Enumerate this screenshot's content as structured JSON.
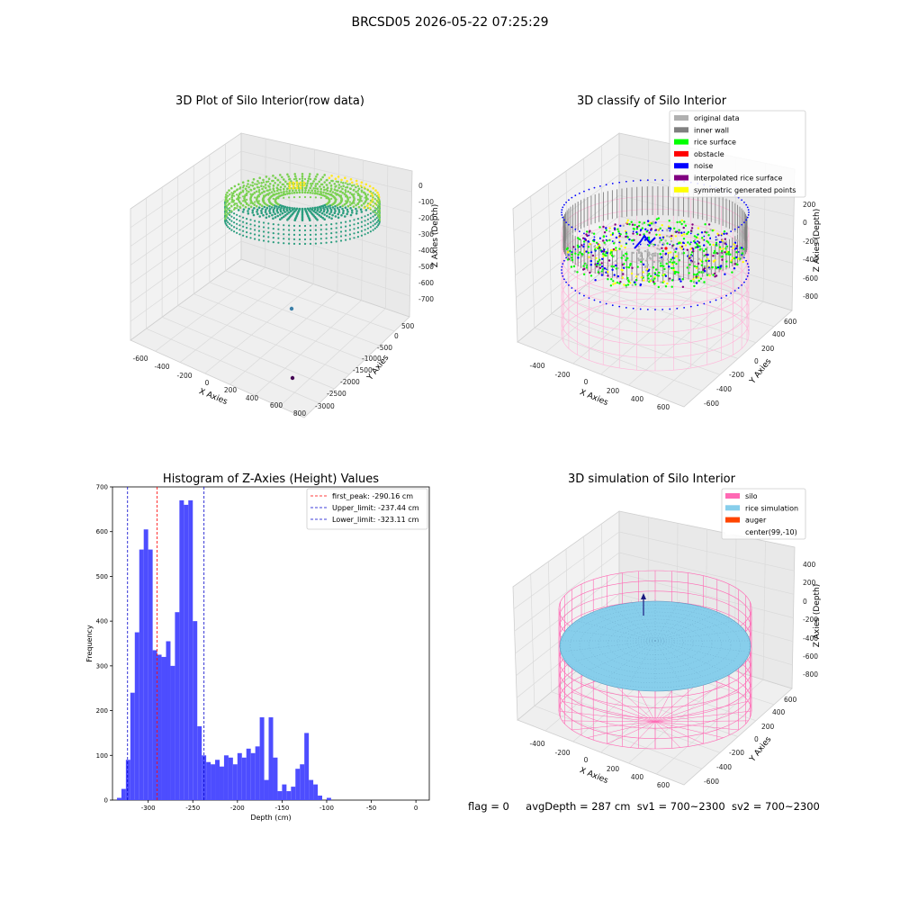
{
  "figure": {
    "title": "BRCSD05 2026-05-22 07:25:29",
    "footer": {
      "flag": "flag = 0",
      "avgDepth": "avgDepth = 287 cm",
      "sv1": "sv1 = 700~2300",
      "sv2": "sv2 = 700~2300"
    }
  },
  "chart_data": [
    {
      "type": "scatter",
      "projection": "3d",
      "title": "3D Plot of Silo Interior(row data)",
      "xlabel": "X Axies",
      "ylabel": "Y Axies",
      "zlabel": "Z Axies (Depth)",
      "x_ticks": [
        "-600",
        "-400",
        "-200",
        "0",
        "200",
        "400",
        "600",
        "800"
      ],
      "y_ticks": [
        "500",
        "0",
        "-500",
        "-1000",
        "-1500",
        "-2000",
        "-2500",
        "-3000"
      ],
      "z_ticks": [
        "0",
        "-100",
        "-200",
        "-300",
        "-400",
        "-500",
        "-600",
        "-700"
      ],
      "colormap": "viridis",
      "outliers": [
        {
          "x": 130,
          "y": -1100,
          "z": -620,
          "color": "#3b7fa8"
        },
        {
          "x": 600,
          "y": -2600,
          "z": -700,
          "color": "#440154"
        }
      ],
      "colors": {
        "main_low": "#2a9d7e",
        "main_mid": "#7ad151",
        "main_high": "#fde725"
      }
    },
    {
      "type": "scatter",
      "projection": "3d",
      "title": "3D classify of Silo Interior",
      "xlabel": "X Axies",
      "ylabel": "Y Axies",
      "zlabel": "Z Axies (Depth)",
      "x_ticks": [
        "-400",
        "-200",
        "0",
        "200",
        "400",
        "600"
      ],
      "y_ticks": [
        "600",
        "400",
        "200",
        "0",
        "-200",
        "-400",
        "-600"
      ],
      "z_ticks": [
        "200",
        "0",
        "-200",
        "-400",
        "-600",
        "-800"
      ],
      "legend": [
        {
          "label": "original data",
          "color": "#b0b0b0"
        },
        {
          "label": "inner wall",
          "color": "#808080"
        },
        {
          "label": "rice surface",
          "color": "#00ff00"
        },
        {
          "label": "obstacle",
          "color": "#ff0000"
        },
        {
          "label": "noise",
          "color": "#0000ff"
        },
        {
          "label": "interpolated rice surface",
          "color": "#800080"
        },
        {
          "label": "symmetric generated points",
          "color": "#ffff00"
        }
      ],
      "legend_position": "top-right",
      "wireframe_color": "#ffb6d9"
    },
    {
      "type": "bar",
      "title": "Histogram of Z-Axies (Height) Values",
      "xlabel": "Depth (cm)",
      "ylabel": "Frequency",
      "xlim": [
        -340,
        15
      ],
      "ylim": [
        0,
        700
      ],
      "x_ticks": [
        -300,
        -250,
        -200,
        -150,
        -100,
        -50,
        0
      ],
      "y_ticks": [
        0,
        100,
        200,
        300,
        400,
        500,
        600,
        700
      ],
      "bin_start": -335,
      "bin_width": 5,
      "values": [
        5,
        25,
        90,
        240,
        375,
        560,
        605,
        560,
        335,
        325,
        320,
        355,
        300,
        420,
        670,
        660,
        670,
        400,
        165,
        100,
        85,
        80,
        90,
        75,
        100,
        95,
        80,
        105,
        95,
        115,
        105,
        120,
        185,
        45,
        185,
        95,
        20,
        35,
        20,
        30,
        70,
        80,
        150,
        45,
        35,
        10,
        0,
        5
      ],
      "bar_color": "#4d4dff",
      "vlines": [
        {
          "label": "first_peak: -290.16 cm",
          "x": -290.16,
          "color": "#ff0000"
        },
        {
          "label": "Upper_limit: -237.44 cm",
          "x": -237.44,
          "color": "#0000cc"
        },
        {
          "label": "Lower_limit: -323.11 cm",
          "x": -323.11,
          "color": "#0000cc"
        }
      ],
      "legend_position": "top-right"
    },
    {
      "type": "scatter",
      "projection": "3d",
      "title": "3D simulation of Silo Interior",
      "xlabel": "X Axies",
      "ylabel": "Y Axies",
      "zlabel": "Z Axies (Depth)",
      "x_ticks": [
        "-400",
        "-200",
        "0",
        "200",
        "400",
        "600"
      ],
      "y_ticks": [
        "600",
        "400",
        "200",
        "0",
        "-200",
        "-400",
        "-600"
      ],
      "z_ticks": [
        "400",
        "200",
        "0",
        "-200",
        "-400",
        "-600",
        "-800"
      ],
      "legend": [
        {
          "label": "silo",
          "color": "#ff69b4"
        },
        {
          "label": "rice simulation",
          "color": "#87ceeb"
        },
        {
          "label": "auger",
          "color": "#ff4500"
        },
        {
          "label": "center(99,-10)",
          "color": "#ffffff"
        }
      ],
      "legend_position": "top-right",
      "silo_color": "#ff69b4",
      "rice_color": "#87ceeb"
    }
  ]
}
